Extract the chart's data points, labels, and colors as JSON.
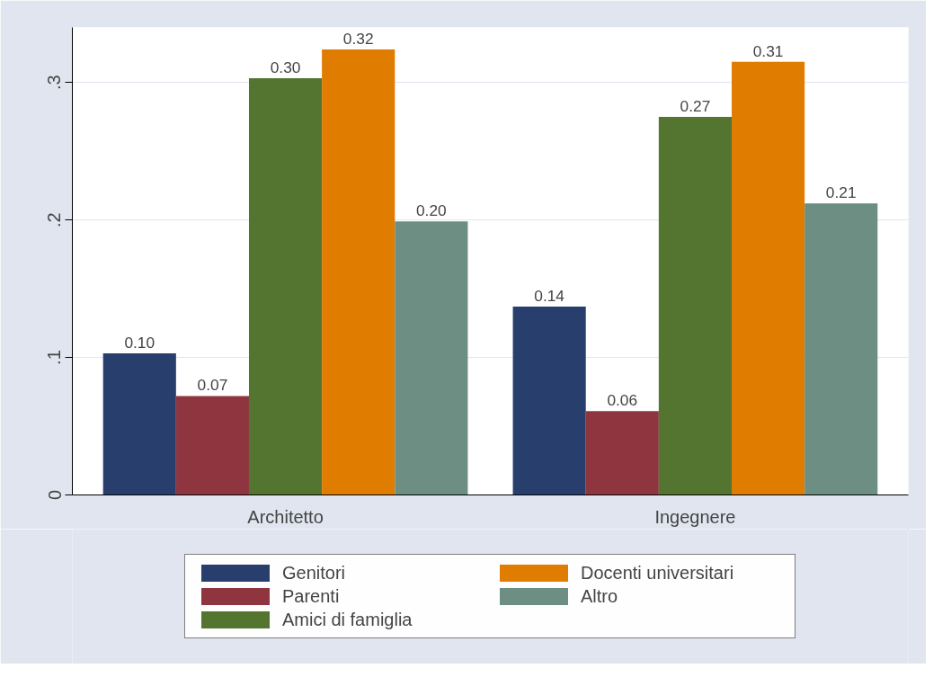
{
  "chart_data": {
    "type": "bar",
    "categories": [
      "Architetto",
      "Ingegnere"
    ],
    "series": [
      {
        "name": "Genitori",
        "color": "#283f6e",
        "values": [
          0.103,
          0.137
        ],
        "value_labels": [
          "0.10",
          "0.14"
        ]
      },
      {
        "name": "Parenti",
        "color": "#8f3540",
        "values": [
          0.072,
          0.061
        ],
        "value_labels": [
          "0.07",
          "0.06"
        ]
      },
      {
        "name": "Amici di famiglia",
        "color": "#53752f",
        "values": [
          0.303,
          0.275
        ],
        "value_labels": [
          "0.30",
          "0.27"
        ]
      },
      {
        "name": "Docenti universitari",
        "color": "#e07c00",
        "values": [
          0.324,
          0.315
        ],
        "value_labels": [
          "0.32",
          "0.31"
        ]
      },
      {
        "name": "Altro",
        "color": "#6c8e83",
        "values": [
          0.199,
          0.212
        ],
        "value_labels": [
          "0.20",
          "0.21"
        ]
      }
    ],
    "ylim": [
      0,
      0.34
    ],
    "yticks": [
      {
        "value": 0,
        "label": "0"
      },
      {
        "value": 0.1,
        "label": ".1"
      },
      {
        "value": 0.2,
        "label": ".2"
      },
      {
        "value": 0.3,
        "label": ".3"
      }
    ],
    "grid": "y",
    "legend": "bottom"
  }
}
